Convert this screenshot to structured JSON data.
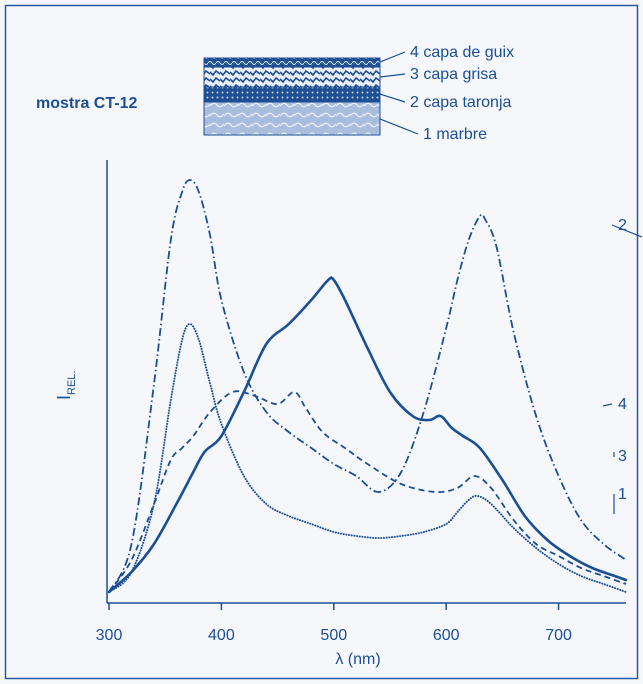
{
  "chart_data": {
    "type": "line",
    "title": "mostra CT-12",
    "xlabel": "λ (nm)",
    "ylabel": {
      "main": "I",
      "sub": "REL."
    },
    "xlim": [
      300,
      760
    ],
    "ylim": [
      0,
      1
    ],
    "xticks": [
      300,
      400,
      500,
      600,
      700
    ],
    "grid": false,
    "legend": {
      "placement": "top-center",
      "entries": [
        "4 capa de guix",
        "3 capa grisa",
        "2 capa taronja",
        "1 marbre"
      ]
    },
    "series": [
      {
        "name": "1",
        "style": "dotted",
        "x": [
          300,
          320,
          340,
          355,
          365,
          372,
          380,
          390,
          400,
          420,
          440,
          460,
          480,
          500,
          520,
          540,
          560,
          580,
          600,
          610,
          620,
          628,
          640,
          660,
          680,
          700,
          720,
          740,
          760
        ],
        "y": [
          0.0,
          0.05,
          0.22,
          0.48,
          0.63,
          0.67,
          0.63,
          0.52,
          0.42,
          0.29,
          0.22,
          0.19,
          0.17,
          0.15,
          0.14,
          0.135,
          0.14,
          0.15,
          0.17,
          0.2,
          0.23,
          0.24,
          0.22,
          0.16,
          0.11,
          0.07,
          0.04,
          0.02,
          0.0
        ]
      },
      {
        "name": "2",
        "style": "dash-dot",
        "x": [
          300,
          320,
          340,
          355,
          365,
          372,
          380,
          390,
          400,
          420,
          440,
          460,
          480,
          500,
          520,
          540,
          560,
          580,
          600,
          610,
          620,
          630,
          635,
          645,
          660,
          680,
          700,
          720,
          740,
          760
        ],
        "y": [
          0.0,
          0.12,
          0.52,
          0.88,
          1.0,
          1.03,
          1.0,
          0.89,
          0.73,
          0.55,
          0.45,
          0.4,
          0.36,
          0.32,
          0.29,
          0.25,
          0.3,
          0.45,
          0.66,
          0.78,
          0.88,
          0.94,
          0.93,
          0.86,
          0.65,
          0.44,
          0.29,
          0.18,
          0.12,
          0.08
        ]
      },
      {
        "name": "3",
        "style": "dashed",
        "x": [
          300,
          320,
          340,
          355,
          365,
          375,
          390,
          410,
          430,
          450,
          465,
          475,
          490,
          510,
          530,
          560,
          590,
          610,
          625,
          640,
          660,
          680,
          700,
          720,
          740,
          760
        ],
        "y": [
          0.0,
          0.08,
          0.22,
          0.33,
          0.36,
          0.39,
          0.45,
          0.5,
          0.49,
          0.47,
          0.5,
          0.46,
          0.4,
          0.36,
          0.32,
          0.27,
          0.25,
          0.26,
          0.29,
          0.26,
          0.18,
          0.12,
          0.09,
          0.06,
          0.04,
          0.02
        ]
      },
      {
        "name": "4",
        "style": "solid",
        "x": [
          300,
          320,
          340,
          360,
          375,
          385,
          400,
          420,
          440,
          460,
          480,
          495,
          500,
          510,
          530,
          550,
          570,
          585,
          595,
          605,
          615,
          630,
          650,
          670,
          690,
          710,
          730,
          750,
          760
        ],
        "y": [
          0.0,
          0.05,
          0.12,
          0.22,
          0.3,
          0.35,
          0.39,
          0.5,
          0.62,
          0.67,
          0.73,
          0.78,
          0.78,
          0.73,
          0.61,
          0.5,
          0.44,
          0.43,
          0.44,
          0.41,
          0.39,
          0.36,
          0.28,
          0.19,
          0.13,
          0.09,
          0.06,
          0.04,
          0.03
        ]
      }
    ],
    "colors": {
      "line": "#1a4f95",
      "border": "#2a5aa0",
      "background": "#f6f7fb"
    }
  }
}
